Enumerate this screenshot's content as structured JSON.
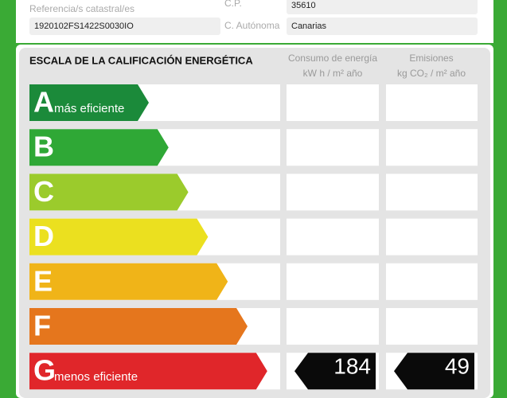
{
  "header": {
    "fields": [
      {
        "label": "Referencia/s catastral/es",
        "value": "1920102FS1422S0030IO"
      },
      {
        "label": "C.P.",
        "value": "35610"
      },
      {
        "label": "C. Autónoma",
        "value": "Canarias"
      }
    ]
  },
  "scale": {
    "title": "ESCALA DE LA CALIFICACIÓN ENERGÉTICA",
    "columns": [
      {
        "title": "Consumo de energía",
        "unit": "kW h / m² año"
      },
      {
        "title": "Emisiones",
        "unit": "kg CO₂ / m² año"
      }
    ],
    "rows": [
      {
        "letter": "A",
        "note": "más eficiente",
        "color": "#1b8a3a"
      },
      {
        "letter": "B",
        "color": "#2fa836"
      },
      {
        "letter": "C",
        "color": "#9bcb2c"
      },
      {
        "letter": "D",
        "color": "#ebe01f"
      },
      {
        "letter": "E",
        "color": "#f0b418"
      },
      {
        "letter": "F",
        "color": "#e5761d"
      },
      {
        "letter": "G",
        "note": "menos eficiente",
        "color": "#e0262a",
        "consumption": 184,
        "emissions": 49
      }
    ]
  }
}
